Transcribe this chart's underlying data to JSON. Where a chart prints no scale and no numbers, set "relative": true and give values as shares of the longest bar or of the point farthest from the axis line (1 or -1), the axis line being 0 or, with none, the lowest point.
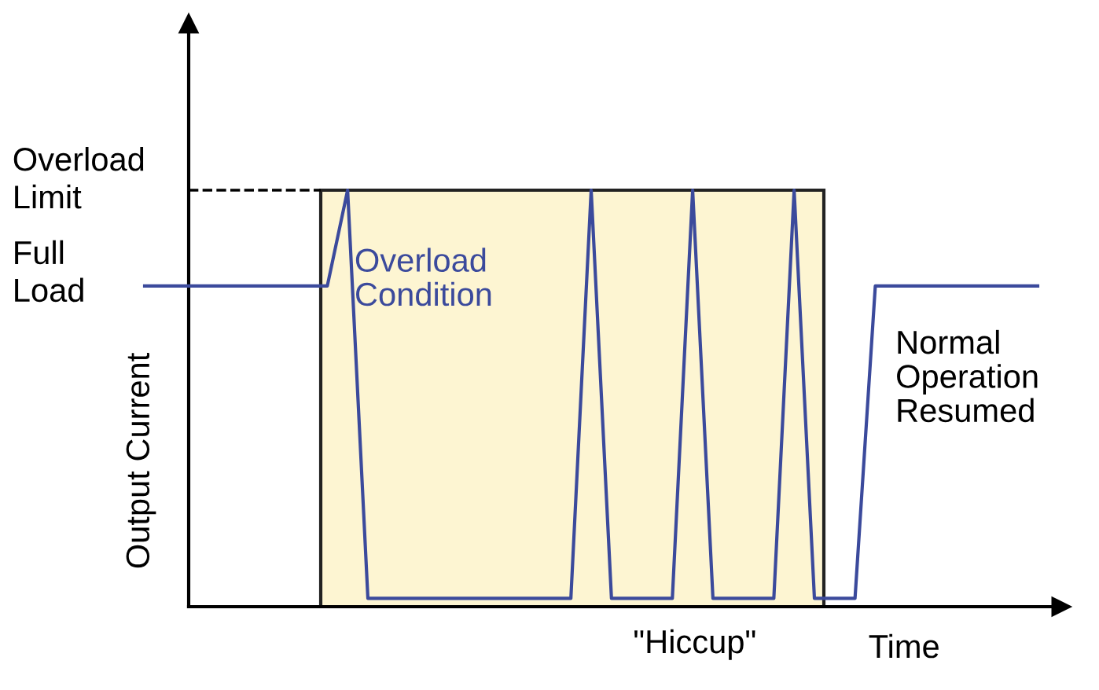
{
  "chart_data": {
    "type": "line",
    "relative": true,
    "xlabel": "Time",
    "ylabel": "Output Current",
    "categories": [
      null,
      null,
      null,
      null,
      null,
      null,
      null,
      null,
      null,
      null,
      null,
      null,
      null,
      null,
      null,
      null,
      null,
      null,
      null,
      null,
      null,
      null,
      null,
      null,
      null,
      null,
      null,
      null,
      null,
      null,
      null,
      null,
      null,
      null,
      null,
      null,
      null,
      null,
      null,
      null,
      null,
      null,
      null,
      null,
      null
    ],
    "series": [
      {
        "color": "#3b4a9c",
        "values": [
          0.77,
          0.77,
          0.77,
          0.77,
          0.77,
          0.77,
          0.77,
          0.77,
          0.77,
          0.77,
          1,
          0.02,
          0.02,
          0.02,
          0.02,
          0.02,
          0.02,
          0.02,
          0.02,
          0.02,
          0.02,
          0.02,
          1,
          0.02,
          0.02,
          0.02,
          0.02,
          1,
          0.02,
          0.02,
          0.02,
          0.02,
          1,
          0.02,
          0.02,
          0.02,
          0.77,
          0.77,
          0.77,
          0.77,
          0.77,
          0.77,
          0.77,
          0.77,
          0.77
        ]
      }
    ],
    "ref_lines": [
      {
        "axis": "y",
        "value": 1,
        "line_style": "dashed",
        "color": "#000000"
      }
    ],
    "annotations": [
      "Overload Limit",
      "Full Load",
      "Overload Condition",
      "Normal Operation Resumed",
      "\"Hiccup\""
    ],
    "marker": "none",
    "line_style": "solid"
  }
}
